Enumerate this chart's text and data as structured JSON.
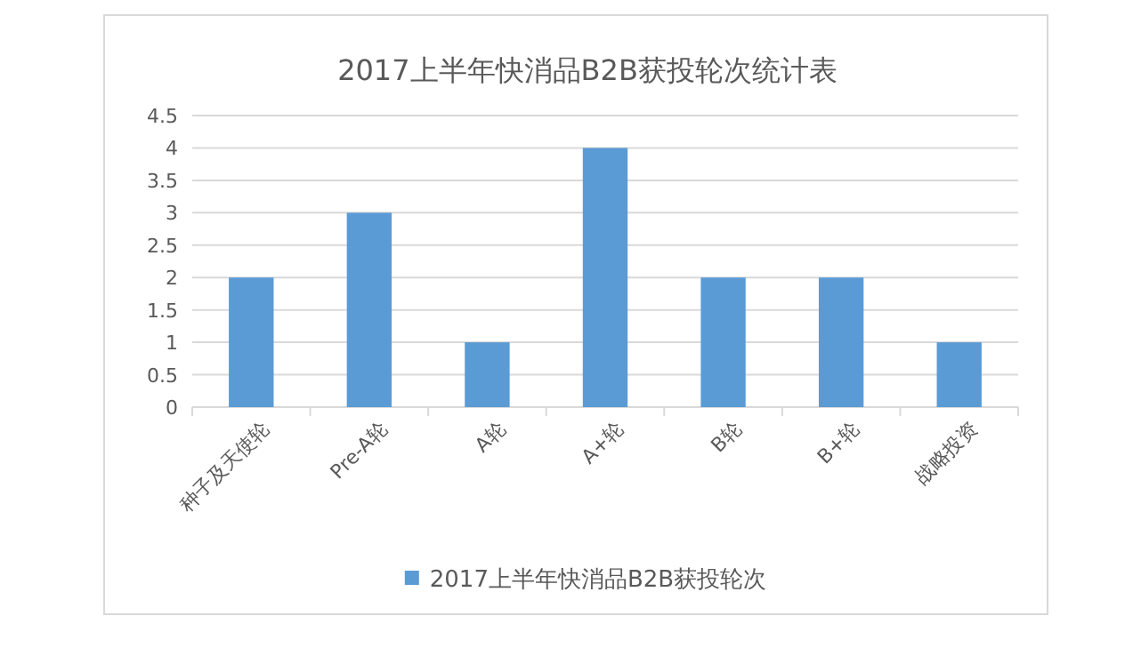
{
  "chart_data": {
    "type": "bar",
    "title": "2017上半年快消品B2B获投轮次统计表",
    "categories": [
      "种子及天使轮",
      "Pre-A轮",
      "A轮",
      "A+轮",
      "B轮",
      "B+轮",
      "战略投资"
    ],
    "series": [
      {
        "name": "2017上半年快消品B2B获投轮次",
        "color": "#5b9bd5",
        "values": [
          2,
          3,
          1,
          4,
          2,
          2,
          1
        ]
      }
    ],
    "ylim": [
      0,
      4.5
    ],
    "yticks": [
      0,
      0.5,
      1,
      1.5,
      2,
      2.5,
      3,
      3.5,
      4,
      4.5
    ],
    "grid": "y",
    "legend": "bottom"
  }
}
